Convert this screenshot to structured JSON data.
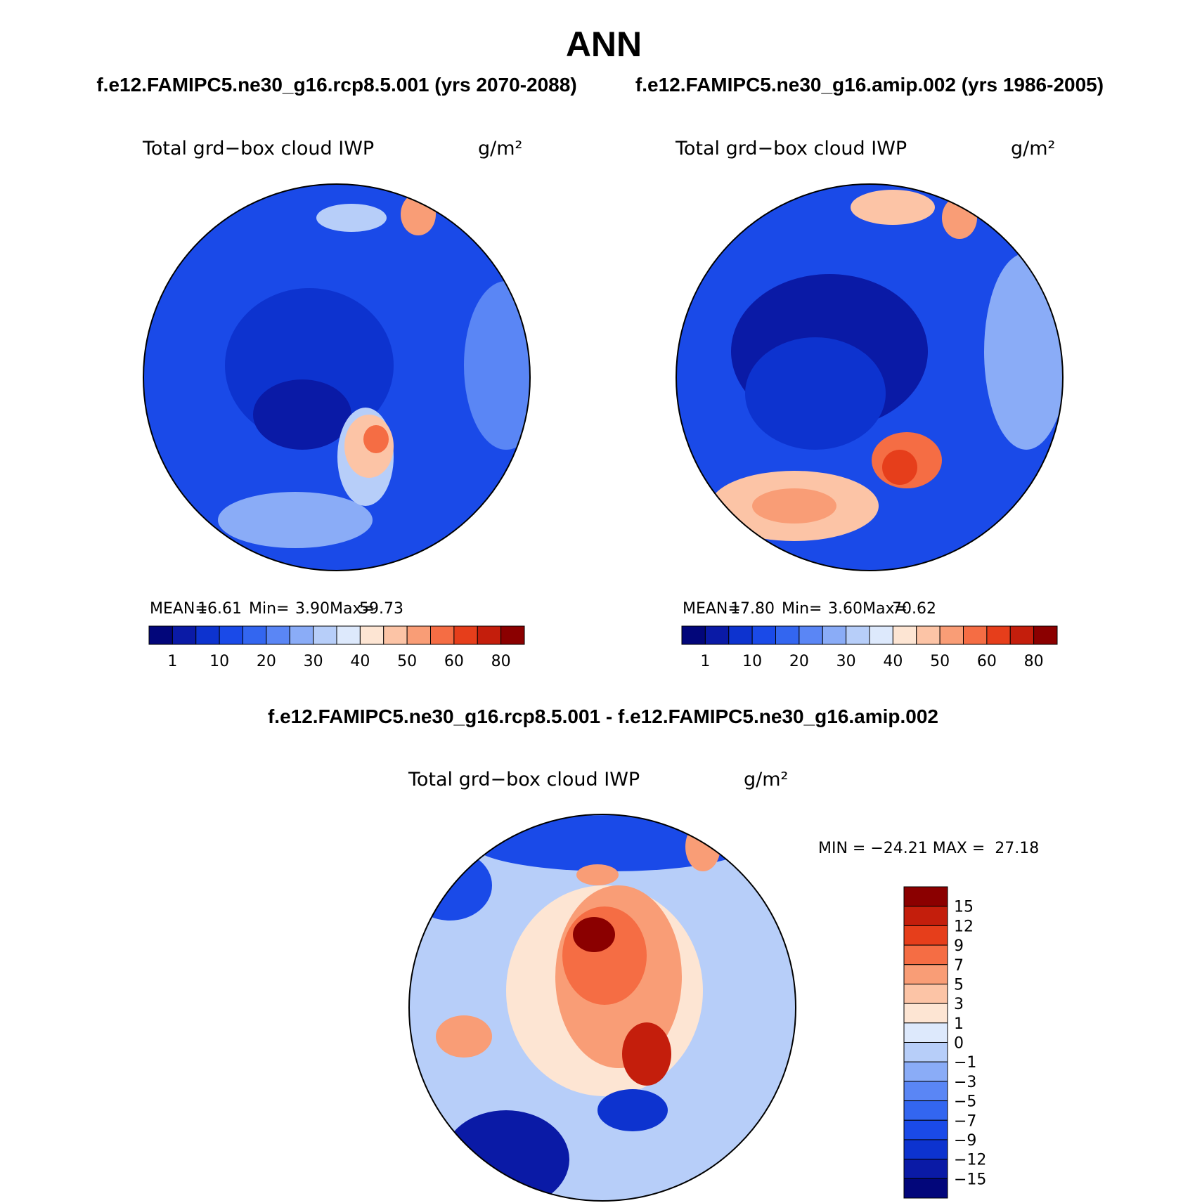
{
  "header": {
    "title": "ANN",
    "left_case": "f.e12.FAMIPC5.ne30_g16.rcp8.5.001 (yrs 2070-2088)",
    "right_case": "f.e12.FAMIPC5.ne30_g16.amip.002 (yrs 1986-2005)"
  },
  "colors": [
    "#02067a",
    "#0a1aa6",
    "#0d33cf",
    "#1a4ae8",
    "#3366f0",
    "#5a86f5",
    "#8aacf7",
    "#b7cef9",
    "#dde9fc",
    "#fde5d3",
    "#fcc4a6",
    "#f99d76",
    "#f56d44",
    "#e63e1b",
    "#c41e0c",
    "#8b0000"
  ],
  "panels": [
    {
      "variable": "Total grd−box cloud IWP",
      "units": "g/m²",
      "stats": [
        "MEAN=",
        "16.61",
        "Min=",
        "3.90",
        "Max=",
        "59.73"
      ],
      "colorbar_labels": [
        "1",
        "10",
        "20",
        "30",
        "40",
        "50",
        "60",
        "80"
      ]
    },
    {
      "variable": "Total grd−box cloud IWP",
      "units": "g/m²",
      "stats": [
        "MEAN=",
        "17.80",
        "Min=",
        "3.60",
        "Max=",
        "70.62"
      ],
      "colorbar_labels": [
        "1",
        "10",
        "20",
        "30",
        "40",
        "50",
        "60",
        "80"
      ]
    }
  ],
  "difference": {
    "title": "f.e12.FAMIPC5.ne30_g16.rcp8.5.001 - f.e12.FAMIPC5.ne30_g16.amip.002",
    "variable": "Total grd−box cloud IWP",
    "units": "g/m²",
    "minmax": "MIN = −24.21 MAX =  27.18",
    "colorbar_labels": [
      "15",
      "12",
      "9",
      "7",
      "5",
      "3",
      "1",
      "0",
      "−1",
      "−3",
      "−5",
      "−7",
      "−9",
      "−12",
      "−15"
    ]
  }
}
